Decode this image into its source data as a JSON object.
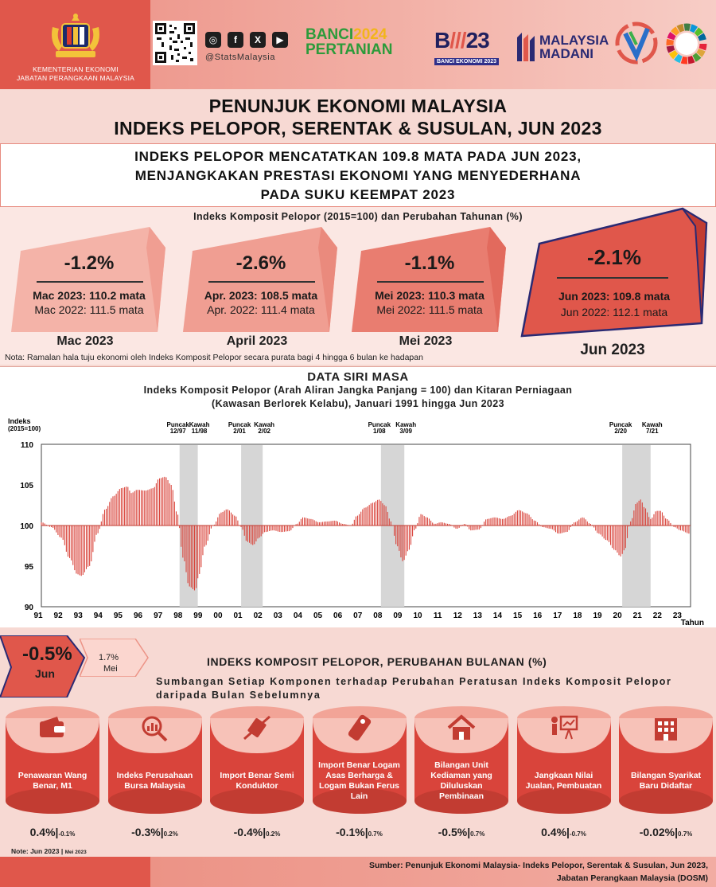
{
  "header": {
    "ministry_line1": "KEMENTERIAN EKONOMI",
    "ministry_line2": "JABATAN PERANGKAAN MALAYSIA",
    "handle": "@StatsMalaysia",
    "banci_pertanian_a": "BANCI",
    "banci_pertanian_year": "2024",
    "banci_pertanian_b": "PERTANIAN",
    "banci_ekonomi_num": "23",
    "banci_ekonomi_text": "BANCI EKONOMI 2023",
    "madani_a": "MALAYSIA",
    "madani_b": "MADANI"
  },
  "title": {
    "line1": "PENUNJUK EKONOMI MALAYSIA",
    "line2": "INDEKS PELOPOR, SERENTAK & SUSULAN, JUN 2023"
  },
  "headline": {
    "line1": "INDEKS PELOPOR MENCATATKAN 109.8 MATA PADA JUN 2023,",
    "line2": "MENJANGKAKAN PRESTASI EKONOMI YANG MENYEDERHANA",
    "line3": "PADA SUKU KEEMPAT 2023"
  },
  "kpi": {
    "title": "Indeks Komposit Pelopor (2015=100) dan Perubahan Tahunan (%)",
    "cards": [
      {
        "pct": "-1.2%",
        "v1": "Mac 2023: 110.2 mata",
        "v2": "Mac 2022: 111.5 mata",
        "label": "Mac 2023"
      },
      {
        "pct": "-2.6%",
        "v1": "Apr. 2023: 108.5 mata",
        "v2": "Apr. 2022: 111.4 mata",
        "label": "April 2023"
      },
      {
        "pct": "-1.1%",
        "v1": "Mei 2023: 110.3 mata",
        "v2": "Mei 2022: 111.5 mata",
        "label": "Mei 2023"
      },
      {
        "pct": "-2.1%",
        "v1": "Jun 2023: 109.8 mata",
        "v2": "Jun 2022: 112.1 mata",
        "label": "Jun 2023"
      }
    ],
    "note": "Nota: Ramalan hala tuju ekonomi oleh Indeks Komposit Pelopor secara purata bagi 4 hingga 6 bulan ke hadapan"
  },
  "chart_head": {
    "title": "DATA SIRI MASA",
    "sub1": "Indeks Komposit Pelopor (Arah Aliran Jangka Panjang  = 100) dan Kitaran Perniagaan",
    "sub2": "(Kawasan  Berlorek Kelabu),  Januari 1991 hingga Jun 2023"
  },
  "chart_data": {
    "type": "bar",
    "ylabel": "Indeks\n(2015=100)",
    "xlabel": "Tahun",
    "ylim": [
      90,
      110
    ],
    "yticks": [
      90,
      95,
      100,
      105,
      110
    ],
    "baseline": 100,
    "xticks": [
      "91",
      "92",
      "93",
      "94",
      "95",
      "96",
      "97",
      "98",
      "99",
      "00",
      "01",
      "02",
      "03",
      "04",
      "05",
      "06",
      "07",
      "08",
      "09",
      "10",
      "11",
      "12",
      "13",
      "14",
      "15",
      "16",
      "17",
      "18",
      "19",
      "20",
      "21",
      "22",
      "23"
    ],
    "shaded_periods": [
      {
        "from": 1997.92,
        "to": 1998.83,
        "peak": "12/97",
        "trough": "11/98"
      },
      {
        "from": 2001.0,
        "to": 2002.08,
        "peak": "2/01",
        "trough": "2/02"
      },
      {
        "from": 2008.0,
        "to": 2009.17,
        "peak": "1/08",
        "trough": "3/09"
      },
      {
        "from": 2020.08,
        "to": 2021.5,
        "peak": "2/20",
        "trough": "7/21"
      }
    ],
    "peak_label": "Puncak",
    "trough_label": "Kawah",
    "series_points": [
      [
        1991.0,
        100.4
      ],
      [
        1991.5,
        99.8
      ],
      [
        1992.0,
        98.5
      ],
      [
        1992.4,
        96.0
      ],
      [
        1992.8,
        94.0
      ],
      [
        1993.0,
        93.8
      ],
      [
        1993.4,
        95.0
      ],
      [
        1993.8,
        99.0
      ],
      [
        1994.2,
        102.0
      ],
      [
        1994.6,
        103.6
      ],
      [
        1995.0,
        104.6
      ],
      [
        1995.3,
        104.8
      ],
      [
        1995.5,
        104.0
      ],
      [
        1995.8,
        104.4
      ],
      [
        1996.2,
        104.3
      ],
      [
        1996.6,
        104.6
      ],
      [
        1996.9,
        105.8
      ],
      [
        1997.2,
        106.0
      ],
      [
        1997.5,
        105.0
      ],
      [
        1997.8,
        101.5
      ],
      [
        1998.1,
        96.0
      ],
      [
        1998.4,
        92.5
      ],
      [
        1998.7,
        92.0
      ],
      [
        1998.9,
        94.0
      ],
      [
        1999.2,
        97.5
      ],
      [
        1999.6,
        100.0
      ],
      [
        2000.0,
        101.6
      ],
      [
        2000.3,
        102.0
      ],
      [
        2000.7,
        101.2
      ],
      [
        2001.0,
        99.8
      ],
      [
        2001.3,
        98.0
      ],
      [
        2001.6,
        97.6
      ],
      [
        2001.9,
        98.5
      ],
      [
        2002.2,
        99.2
      ],
      [
        2002.6,
        99.4
      ],
      [
        2003.0,
        99.2
      ],
      [
        2003.4,
        99.3
      ],
      [
        2003.8,
        100.2
      ],
      [
        2004.1,
        101.0
      ],
      [
        2004.5,
        100.8
      ],
      [
        2004.9,
        100.4
      ],
      [
        2005.3,
        100.5
      ],
      [
        2005.7,
        100.6
      ],
      [
        2006.1,
        100.2
      ],
      [
        2006.5,
        100.0
      ],
      [
        2006.8,
        101.2
      ],
      [
        2007.2,
        102.2
      ],
      [
        2007.6,
        102.8
      ],
      [
        2007.9,
        103.2
      ],
      [
        2008.2,
        102.5
      ],
      [
        2008.5,
        100.5
      ],
      [
        2008.8,
        97.5
      ],
      [
        2009.1,
        95.6
      ],
      [
        2009.4,
        97.0
      ],
      [
        2009.7,
        99.5
      ],
      [
        2010.0,
        101.4
      ],
      [
        2010.3,
        101.0
      ],
      [
        2010.7,
        100.2
      ],
      [
        2011.0,
        100.4
      ],
      [
        2011.4,
        100.2
      ],
      [
        2011.8,
        99.6
      ],
      [
        2012.2,
        100.2
      ],
      [
        2012.5,
        99.4
      ],
      [
        2012.9,
        99.5
      ],
      [
        2013.3,
        100.8
      ],
      [
        2013.7,
        101.0
      ],
      [
        2014.1,
        100.8
      ],
      [
        2014.5,
        101.2
      ],
      [
        2014.9,
        101.9
      ],
      [
        2015.3,
        101.5
      ],
      [
        2015.7,
        100.6
      ],
      [
        2016.1,
        99.8
      ],
      [
        2016.5,
        99.6
      ],
      [
        2016.9,
        99.0
      ],
      [
        2017.3,
        99.2
      ],
      [
        2017.7,
        100.4
      ],
      [
        2018.1,
        101.0
      ],
      [
        2018.5,
        100.2
      ],
      [
        2018.9,
        99.0
      ],
      [
        2019.3,
        98.2
      ],
      [
        2019.7,
        97.0
      ],
      [
        2020.0,
        96.2
      ],
      [
        2020.2,
        97.0
      ],
      [
        2020.5,
        100.5
      ],
      [
        2020.8,
        102.8
      ],
      [
        2021.0,
        103.2
      ],
      [
        2021.2,
        102.2
      ],
      [
        2021.5,
        100.8
      ],
      [
        2021.8,
        101.8
      ],
      [
        2022.0,
        101.8
      ],
      [
        2022.3,
        100.8
      ],
      [
        2022.7,
        99.8
      ],
      [
        2023.0,
        99.4
      ],
      [
        2023.45,
        99.0
      ]
    ]
  },
  "monthly": {
    "current_pct": "-0.5%",
    "current_label": "Jun",
    "prev_pct": "1.7%",
    "prev_label": "Mei",
    "title": "INDEKS KOMPOSIT PELOPOR, PERUBAHAN BULANAN (%)",
    "contrib": "Sumbangan Setiap Komponen terhadap Perubahan Peratusan Indeks Komposit Pelopor daripada Bulan Sebelumnya",
    "components": [
      {
        "label": "Penawaran Wang Benar, M1",
        "icon": "wallet-icon",
        "jun": "0.4%",
        "mei": "-0.1%"
      },
      {
        "label": "Indeks Perusahaan Bursa Malaysia",
        "icon": "stock-chart-icon",
        "jun": "-0.3%",
        "mei": "0.2%"
      },
      {
        "label": "Import Benar Semi Konduktor",
        "icon": "chip-icon",
        "jun": "-0.4%",
        "mei": "0.2%"
      },
      {
        "label": "Import Benar Logam Asas Berharga & Logam Bukan Ferus Lain",
        "icon": "metal-bar-icon",
        "jun": "-0.1%",
        "mei": "0.7%"
      },
      {
        "label": "Bilangan Unit Kediaman yang Diluluskan Pembinaan",
        "icon": "house-icon",
        "jun": "-0.5%",
        "mei": "0.7%"
      },
      {
        "label": "Jangkaan Nilai Jualan, Pembuatan",
        "icon": "presentation-icon",
        "jun": "0.4%",
        "mei": "-0.7%"
      },
      {
        "label": "Bilangan Syarikat Baru Didaftar",
        "icon": "building-icon",
        "jun": "-0.02%",
        "mei": "0.7%"
      }
    ],
    "note_a": "Note: Jun 2023",
    "note_b": "Mei 2023"
  },
  "source": {
    "line1": "Sumber: Penunjuk Ekonomi Malaysia- Indeks Pelopor, Serentak & Susulan, Jun 2023,",
    "line2": "Jabatan Perangkaan Malaysia (DOSM)"
  },
  "colors": {
    "accent": "#e0574b",
    "bar": "#d9443b",
    "shade": "#d6d6d6"
  }
}
